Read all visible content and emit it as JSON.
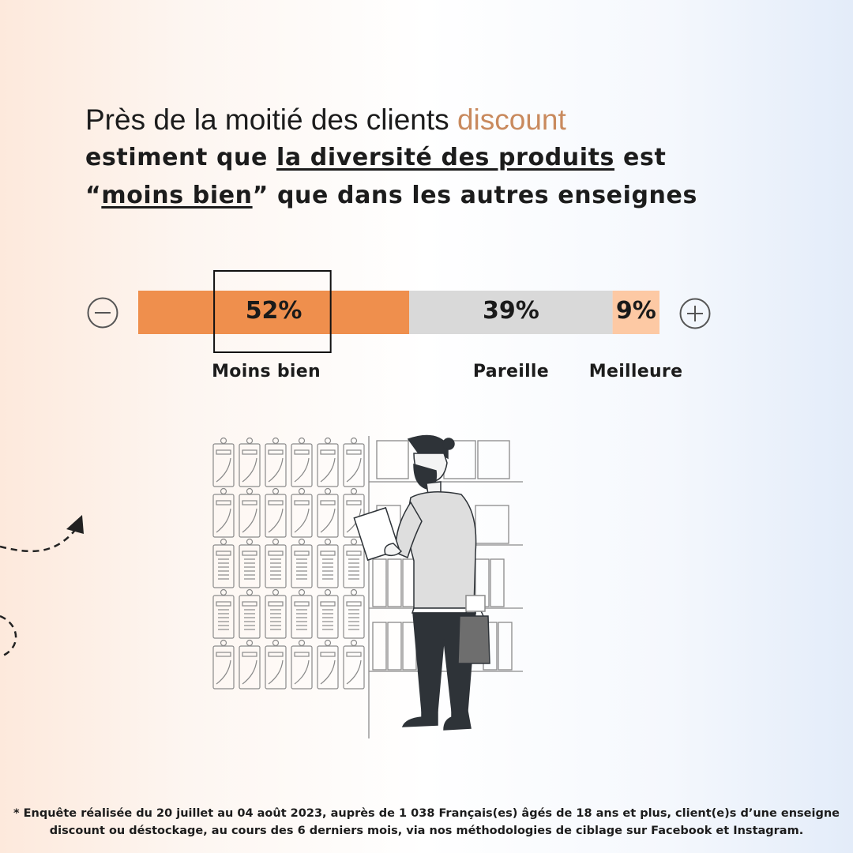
{
  "title": {
    "line1_prefix": "Près de la moitié des clients ",
    "line1_accent": "discount",
    "line2_prefix": "estiment que ",
    "line2_underline": "la diversité des produits",
    "line2_suffix": " est",
    "line3_prefix": "“",
    "line3_underline": "moins bien",
    "line3_suffix": "” que dans les autres enseignes"
  },
  "colors": {
    "accent_text": "#c98a5e",
    "moins_bien": "#ef8f4d",
    "pareille": "#d9d9d9",
    "meilleure": "#fdc9a4"
  },
  "icons": {
    "minus": "minus-circle-icon",
    "plus": "plus-circle-icon"
  },
  "chart_data": {
    "type": "bar",
    "orientation": "horizontal-stacked",
    "unit": "%",
    "categories": [
      "Moins bien",
      "Pareille",
      "Meilleure"
    ],
    "values": [
      52,
      39,
      9
    ],
    "value_labels": [
      "52%",
      "39%",
      "9%"
    ],
    "highlight_category": "Moins bien",
    "scale_min_label": "−",
    "scale_max_label": "+",
    "title": "Près de la moitié des clients discount estiment que la diversité des produits est “moins bien” que dans les autres enseignes"
  },
  "footnote": {
    "line1": "* Enquête réalisée du 20 juillet au 04 août 2023, auprès de 1 038 Français(es) âgés de 18 ans et plus, client(e)s d’une enseigne",
    "line2": "discount ou déstockage, au cours des 6 derniers mois, via nos méthodologies de ciblage sur Facebook et Instagram."
  }
}
